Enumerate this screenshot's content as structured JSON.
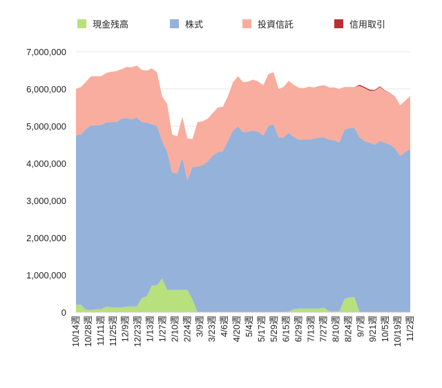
{
  "chart_data": {
    "type": "area",
    "stacked": true,
    "title": "",
    "xlabel": "",
    "ylabel": "",
    "ylim": [
      0,
      7000000
    ],
    "yticks": [
      0,
      1000000,
      2000000,
      3000000,
      4000000,
      5000000,
      6000000,
      7000000
    ],
    "ytick_labels": [
      "0",
      "1,000,000",
      "2,000,000",
      "3,000,000",
      "4,000,000",
      "5,000,000",
      "6,000,000",
      "7,000,000"
    ],
    "grid": true,
    "legend_position": "top",
    "x_tick_labels": [
      "10/14週",
      "10/28週",
      "11/11週",
      "11/25週",
      "12/9週",
      "12/23週",
      "1/13週",
      "1/27週",
      "2/10週",
      "2/24週",
      "3/9週",
      "3/23週",
      "4/6週",
      "4/20週",
      "5/4週",
      "5/17週",
      "5/29週",
      "6/15週",
      "6/29週",
      "7/13週",
      "7/27週",
      "8/10週",
      "8/24週",
      "9/7週",
      "9/21週",
      "10/5週",
      "10/19週",
      "11/2週"
    ],
    "series": [
      {
        "name": "現金残高",
        "color": "#b8e07c",
        "values": [
          200000,
          200000,
          60000,
          60000,
          80000,
          80000,
          150000,
          130000,
          130000,
          130000,
          150000,
          150000,
          150000,
          380000,
          430000,
          720000,
          720000,
          900000,
          600000,
          600000,
          600000,
          600000,
          600000,
          350000,
          0,
          0,
          0,
          0,
          0,
          0,
          0,
          0,
          0,
          0,
          0,
          0,
          0,
          0,
          0,
          0,
          0,
          0,
          20000,
          80000,
          100000,
          100000,
          100000,
          100000,
          100000,
          120000,
          20000,
          20000,
          20000,
          350000,
          400000,
          400000,
          0,
          0,
          0,
          0,
          0,
          0,
          0,
          0,
          0,
          0,
          0
        ]
      },
      {
        "name": "株式",
        "color": "#95b2da",
        "values": [
          4550000,
          4580000,
          4870000,
          4960000,
          4940000,
          4950000,
          4950000,
          4980000,
          4980000,
          5070000,
          5070000,
          5030000,
          5080000,
          4730000,
          4660000,
          4330000,
          4280000,
          3700000,
          3720000,
          3150000,
          3130000,
          3550000,
          2950000,
          3550000,
          3910000,
          3950000,
          4050000,
          4200000,
          4300000,
          4320000,
          4600000,
          4880000,
          4990000,
          4830000,
          4850000,
          4880000,
          4850000,
          4750000,
          5000000,
          5050000,
          4700000,
          4700000,
          4800000,
          4630000,
          4530000,
          4540000,
          4540000,
          4560000,
          4600000,
          4580000,
          4620000,
          4600000,
          4540000,
          4550000,
          4550000,
          4550000,
          4700000,
          4600000,
          4550000,
          4500000,
          4600000,
          4550000,
          4500000,
          4400000,
          4200000,
          4300000,
          4390000
        ]
      },
      {
        "name": "投資信託",
        "color": "#f8ad9f",
        "values": [
          1250000,
          1270000,
          1270000,
          1320000,
          1320000,
          1310000,
          1330000,
          1350000,
          1370000,
          1330000,
          1370000,
          1400000,
          1400000,
          1400000,
          1400000,
          1500000,
          1450000,
          1200000,
          1280000,
          1020000,
          1000000,
          1100000,
          1120000,
          750000,
          1200000,
          1180000,
          1150000,
          1150000,
          1200000,
          1200000,
          1200000,
          1300000,
          1350000,
          1350000,
          1350000,
          1370000,
          1350000,
          1350000,
          1400000,
          1400000,
          1300000,
          1350000,
          1400000,
          1400000,
          1400000,
          1380000,
          1420000,
          1380000,
          1380000,
          1400000,
          1400000,
          1420000,
          1440000,
          1150000,
          1100000,
          1100000,
          1380000,
          1420000,
          1400000,
          1450000,
          1450000,
          1400000,
          1400000,
          1400000,
          1360000,
          1380000,
          1420000
        ]
      },
      {
        "name": "信用取引",
        "color": "#b53234",
        "values": [
          0,
          0,
          0,
          0,
          0,
          0,
          0,
          0,
          0,
          0,
          0,
          0,
          0,
          0,
          0,
          0,
          0,
          0,
          0,
          0,
          0,
          0,
          0,
          0,
          0,
          0,
          0,
          0,
          0,
          0,
          0,
          0,
          0,
          0,
          0,
          0,
          0,
          0,
          0,
          0,
          0,
          0,
          0,
          0,
          0,
          0,
          0,
          0,
          0,
          0,
          0,
          0,
          0,
          0,
          0,
          0,
          30000,
          30000,
          30000,
          20000,
          20000,
          10000,
          0,
          0,
          0,
          0,
          0
        ]
      }
    ]
  }
}
